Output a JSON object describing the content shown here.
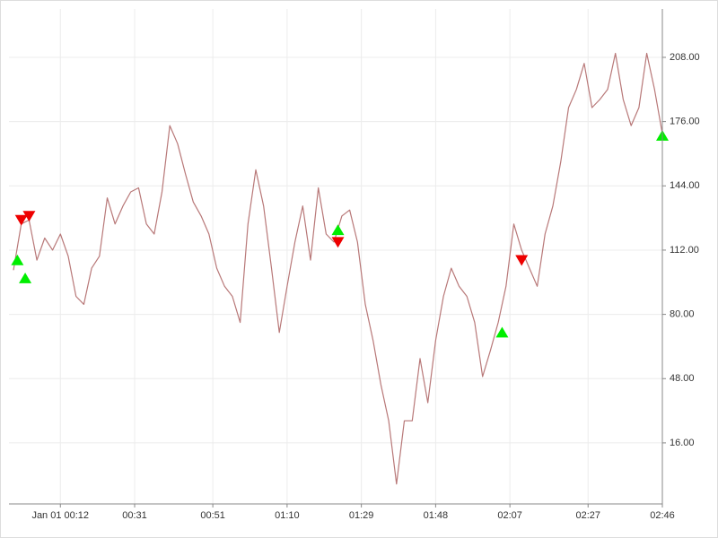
{
  "chart_data": {
    "type": "line",
    "x": [
      "00:00",
      "00:02",
      "00:04",
      "00:06",
      "00:08",
      "00:10",
      "00:12",
      "00:14",
      "00:16",
      "00:18",
      "00:20",
      "00:22",
      "00:24",
      "00:26",
      "00:28",
      "00:30",
      "00:32",
      "00:34",
      "00:36",
      "00:38",
      "00:40",
      "00:42",
      "00:44",
      "00:46",
      "00:48",
      "00:50",
      "00:52",
      "00:54",
      "00:56",
      "00:58",
      "01:00",
      "01:02",
      "01:04",
      "01:06",
      "01:08",
      "01:10",
      "01:12",
      "01:14",
      "01:16",
      "01:18",
      "01:20",
      "01:22",
      "01:24",
      "01:26",
      "01:28",
      "01:30",
      "01:32",
      "01:34",
      "01:36",
      "01:38",
      "01:40",
      "01:42",
      "01:44",
      "01:46",
      "01:48",
      "01:50",
      "01:52",
      "01:54",
      "01:56",
      "01:58",
      "02:00",
      "02:02",
      "02:04",
      "02:06",
      "02:08",
      "02:10",
      "02:12",
      "02:14",
      "02:16",
      "02:18",
      "02:20",
      "02:22",
      "02:24",
      "02:26",
      "02:28",
      "02:30",
      "02:32",
      "02:34",
      "02:36",
      "02:38",
      "02:40",
      "02:42",
      "02:44",
      "02:46"
    ],
    "series": [
      {
        "color": "#b87878",
        "values": [
          102,
          125,
          127,
          107,
          118,
          112,
          120,
          109,
          89,
          85,
          103,
          109,
          138,
          125,
          134,
          141,
          143,
          125,
          120,
          141,
          174,
          165,
          150,
          136,
          129,
          120,
          103,
          94,
          89,
          76,
          125,
          152,
          134,
          103,
          71,
          94,
          116,
          134,
          107,
          143,
          120,
          116,
          129,
          132,
          116,
          85,
          67,
          45,
          27,
          -4.5,
          27,
          27,
          58,
          36,
          67,
          89,
          103,
          94,
          89,
          76,
          49,
          62,
          76,
          94,
          125,
          112,
          103,
          94,
          120,
          134,
          156,
          183,
          192,
          205,
          183,
          187,
          192,
          210,
          187,
          174,
          183,
          210,
          192,
          170
        ]
      },
      {
        "type": "scatter",
        "marker": "triangle-up",
        "color": "#00ee00",
        "x": [
          "00:01",
          "00:03",
          "01:23",
          "02:05",
          "02:46"
        ],
        "values": [
          107,
          98,
          122,
          71,
          169
        ]
      },
      {
        "type": "scatter",
        "marker": "triangle-down",
        "color": "#ee0000",
        "x": [
          "00:02",
          "00:04",
          "01:23",
          "02:10"
        ],
        "values": [
          127,
          129,
          116,
          107
        ]
      }
    ],
    "xlim": [
      "00:00",
      "02:46"
    ],
    "xticks": [
      {
        "value": "00:12",
        "label": "Jan 01 00:12"
      },
      "00:31",
      "00:51",
      "01:10",
      "01:29",
      "01:48",
      "02:07",
      "02:27",
      "02:46"
    ],
    "ylim": [
      -14.4,
      232.1
    ],
    "yticks": [
      {
        "value": 16,
        "label": "16.00"
      },
      {
        "value": 48,
        "label": "48.00"
      },
      {
        "value": 80,
        "label": "80.00"
      },
      {
        "value": 112,
        "label": "112.00"
      },
      {
        "value": 144,
        "label": "144.00"
      },
      {
        "value": 176,
        "label": "176.00"
      },
      {
        "value": 208,
        "label": "208.00"
      }
    ],
    "grid": true,
    "y_axis_side": "right"
  }
}
